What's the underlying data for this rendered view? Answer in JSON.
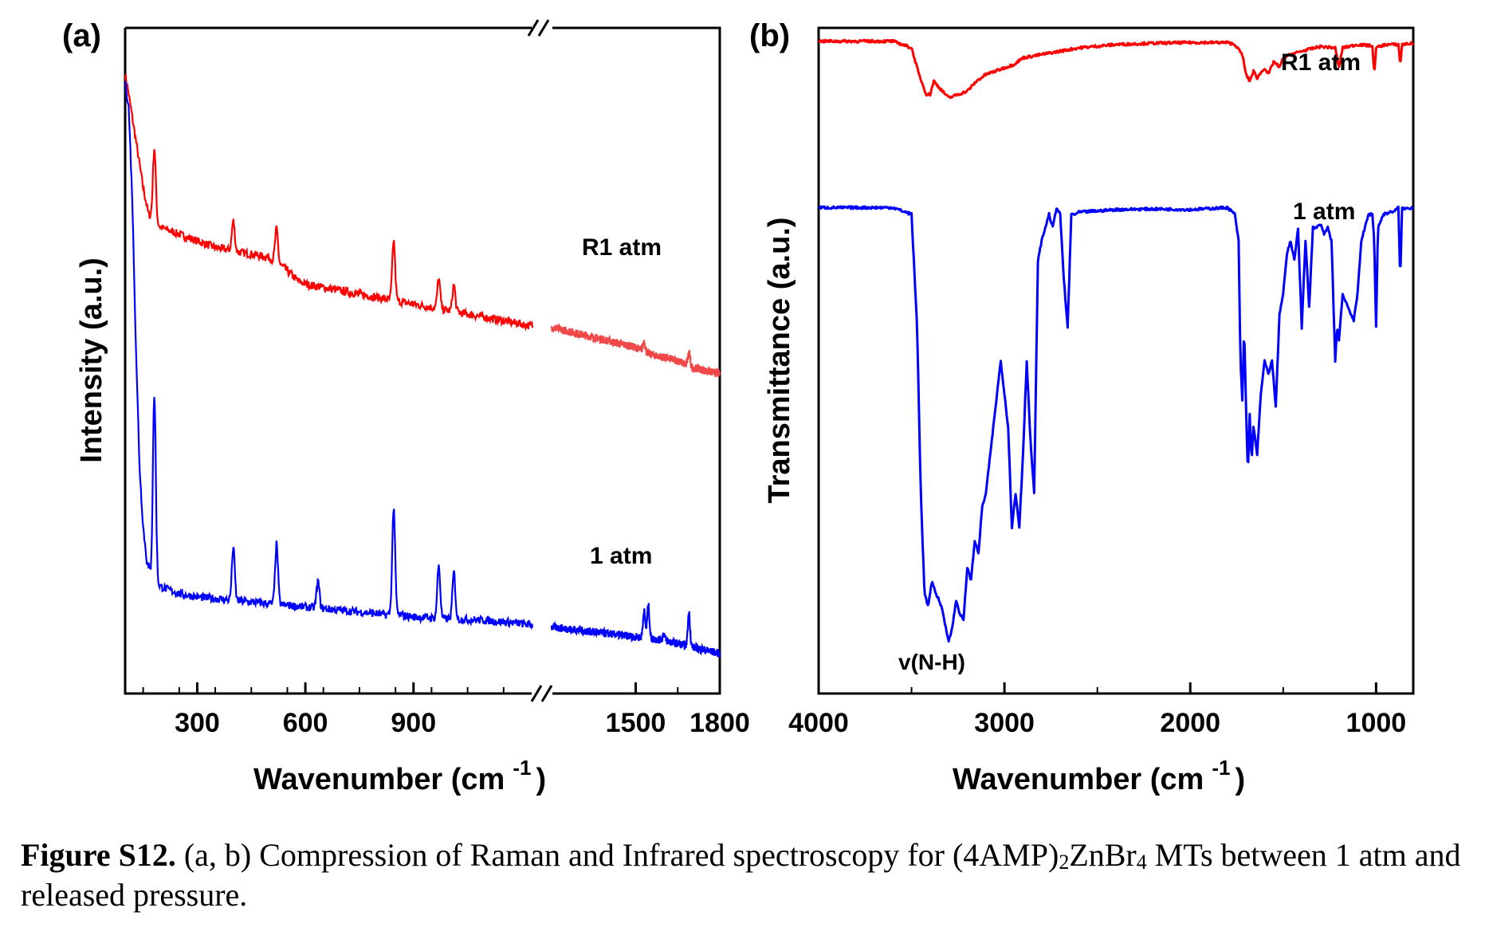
{
  "chart_data": [
    {
      "type": "line",
      "panel_label": "(a)",
      "xlabel": "Wavenumber (cm",
      "xlabel_sup": "-1",
      "xlabel_close": ")",
      "ylabel": "Intensity (a.u.)",
      "axis_break": true,
      "xticks": [
        "300",
        "600",
        "900",
        "1500",
        "1800"
      ],
      "segments": [
        {
          "xlim": [
            100,
            1230
          ]
        },
        {
          "xlim": [
            1200,
            1800
          ]
        }
      ],
      "series": [
        {
          "name": "R1 atm",
          "color": "#ff0000",
          "color_segment2": "#f04848",
          "segment1": {
            "x": [
              100,
              110,
              130,
              150,
              165,
              180,
              200,
              250,
              300,
              350,
              400,
              450,
              500,
              540,
              560,
              580,
              600,
              700,
              800,
              850,
              900,
              950,
              970,
              1000,
              1050,
              1100,
              1150,
              1200,
              1230
            ],
            "y": [
              0.93,
              0.9,
              0.83,
              0.76,
              0.72,
              0.71,
              0.7,
              0.69,
              0.68,
              0.67,
              0.665,
              0.66,
              0.655,
              0.64,
              0.63,
              0.62,
              0.615,
              0.605,
              0.595,
              0.59,
              0.585,
              0.58,
              0.578,
              0.575,
              0.57,
              0.565,
              0.56,
              0.555,
              0.552
            ]
          },
          "segment2": {
            "x": [
              1200,
              1300,
              1400,
              1500,
              1550,
              1600,
              1650,
              1700,
              1800
            ],
            "y": [
              0.55,
              0.54,
              0.53,
              0.52,
              0.51,
              0.505,
              0.5,
              0.49,
              0.48
            ]
          },
          "peaks": [
            [
              181,
              0.11
            ],
            [
              400,
              0.045
            ],
            [
              520,
              0.05
            ],
            [
              845,
              0.09
            ],
            [
              970,
              0.045
            ],
            [
              1012,
              0.04
            ],
            [
              1530,
              0.015
            ],
            [
              1690,
              0.02
            ]
          ]
        },
        {
          "name": "1 atm",
          "color": "#0000ff",
          "color_segment2": "#0000ff",
          "segment1": {
            "x": [
              100,
              110,
              120,
              130,
              140,
              150,
              160,
              170,
              180,
              200,
              250,
              300,
              400,
              500,
              600,
              700,
              800,
              820,
              840,
              900,
              1000,
              1100,
              1200,
              1230
            ],
            "y": [
              0.92,
              0.88,
              0.74,
              0.52,
              0.34,
              0.25,
              0.2,
              0.18,
              0.17,
              0.16,
              0.15,
              0.145,
              0.14,
              0.135,
              0.13,
              0.125,
              0.12,
              0.118,
              0.12,
              0.115,
              0.112,
              0.11,
              0.105,
              0.103
            ]
          },
          "segment2": {
            "x": [
              1200,
              1300,
              1400,
              1500,
              1600,
              1700,
              1750,
              1800
            ],
            "y": [
              0.1,
              0.095,
              0.09,
              0.085,
              0.08,
              0.07,
              0.065,
              0.06
            ]
          },
          "peaks": [
            [
              181,
              0.28
            ],
            [
              400,
              0.08
            ],
            [
              520,
              0.09
            ],
            [
              635,
              0.04
            ],
            [
              845,
              0.16
            ],
            [
              970,
              0.08
            ],
            [
              1012,
              0.07
            ],
            [
              1530,
              0.04
            ],
            [
              1545,
              0.05
            ],
            [
              1600,
              0.01
            ],
            [
              1690,
              0.05
            ]
          ]
        }
      ]
    },
    {
      "type": "line",
      "panel_label": "(b)",
      "xlabel": "Wavenumber (cm",
      "xlabel_sup": "-1",
      "xlabel_close": ")",
      "ylabel": "Transmittance (a.u.)",
      "xlim": [
        4000,
        800
      ],
      "xticks": [
        4000,
        3000,
        2000,
        1000
      ],
      "annotation": "v(N-H)",
      "series": [
        {
          "name": "R1 atm",
          "color": "#ff0000",
          "x": [
            4000,
            3600,
            3500,
            3460,
            3420,
            3400,
            3380,
            3350,
            3300,
            3250,
            3200,
            3150,
            3100,
            3050,
            3000,
            2950,
            2900,
            2800,
            2700,
            2600,
            2400,
            2200,
            2000,
            1800,
            1760,
            1720,
            1700,
            1680,
            1660,
            1640,
            1600,
            1580,
            1550,
            1520,
            1500,
            1460,
            1400,
            1300,
            1220,
            1200,
            1180,
            1100,
            1020,
            1010,
            1000,
            950,
            880,
            870,
            860,
            800
          ],
          "y": [
            0.98,
            0.98,
            0.97,
            0.93,
            0.9,
            0.9,
            0.92,
            0.91,
            0.895,
            0.9,
            0.905,
            0.92,
            0.93,
            0.935,
            0.94,
            0.945,
            0.955,
            0.96,
            0.965,
            0.97,
            0.975,
            0.977,
            0.978,
            0.978,
            0.975,
            0.96,
            0.93,
            0.92,
            0.935,
            0.925,
            0.94,
            0.93,
            0.95,
            0.94,
            0.955,
            0.96,
            0.965,
            0.972,
            0.97,
            0.94,
            0.97,
            0.975,
            0.973,
            0.93,
            0.97,
            0.975,
            0.975,
            0.945,
            0.975,
            0.977
          ]
        },
        {
          "name": "1 atm",
          "color": "#0000ff",
          "x": [
            4000,
            3600,
            3500,
            3470,
            3450,
            3430,
            3410,
            3390,
            3370,
            3350,
            3330,
            3310,
            3300,
            3280,
            3260,
            3240,
            3220,
            3200,
            3180,
            3160,
            3140,
            3120,
            3100,
            3080,
            3060,
            3040,
            3020,
            3000,
            2980,
            2960,
            2940,
            2920,
            2900,
            2880,
            2860,
            2840,
            2820,
            2800,
            2780,
            2760,
            2740,
            2720,
            2700,
            2680,
            2660,
            2640,
            2620,
            2600,
            2500,
            2400,
            2200,
            2000,
            1800,
            1760,
            1740,
            1730,
            1720,
            1710,
            1700,
            1690,
            1680,
            1670,
            1660,
            1640,
            1620,
            1600,
            1580,
            1560,
            1540,
            1520,
            1500,
            1480,
            1460,
            1440,
            1420,
            1400,
            1380,
            1360,
            1340,
            1320,
            1300,
            1280,
            1260,
            1240,
            1220,
            1210,
            1200,
            1180,
            1150,
            1120,
            1100,
            1080,
            1060,
            1040,
            1020,
            1010,
            1000,
            990,
            960,
            900,
            880,
            870,
            860,
            850,
            800
          ],
          "y": [
            0.73,
            0.73,
            0.72,
            0.55,
            0.3,
            0.15,
            0.13,
            0.17,
            0.15,
            0.14,
            0.12,
            0.09,
            0.08,
            0.1,
            0.14,
            0.12,
            0.11,
            0.19,
            0.17,
            0.23,
            0.21,
            0.28,
            0.3,
            0.35,
            0.4,
            0.45,
            0.5,
            0.45,
            0.4,
            0.25,
            0.3,
            0.25,
            0.36,
            0.5,
            0.38,
            0.3,
            0.65,
            0.68,
            0.7,
            0.72,
            0.7,
            0.73,
            0.72,
            0.62,
            0.55,
            0.72,
            0.72,
            0.723,
            0.725,
            0.727,
            0.728,
            0.727,
            0.73,
            0.72,
            0.68,
            0.5,
            0.44,
            0.55,
            0.43,
            0.33,
            0.42,
            0.35,
            0.4,
            0.36,
            0.45,
            0.5,
            0.48,
            0.5,
            0.43,
            0.57,
            0.6,
            0.66,
            0.68,
            0.65,
            0.7,
            0.55,
            0.68,
            0.58,
            0.7,
            0.7,
            0.705,
            0.69,
            0.7,
            0.68,
            0.5,
            0.55,
            0.53,
            0.6,
            0.58,
            0.56,
            0.6,
            0.68,
            0.7,
            0.72,
            0.72,
            0.68,
            0.55,
            0.7,
            0.72,
            0.725,
            0.73,
            0.62,
            0.73,
            0.728,
            0.73
          ]
        }
      ]
    }
  ],
  "caption": {
    "bold_part": "Figure S12.",
    "text_part1": " (a, b) Compression of Raman and Infrared spectroscopy for (4AMP)",
    "sub1": "2",
    "text_part2": "ZnBr",
    "sub2": "4",
    "text_part3": " MTs between 1 atm and released pressure."
  }
}
